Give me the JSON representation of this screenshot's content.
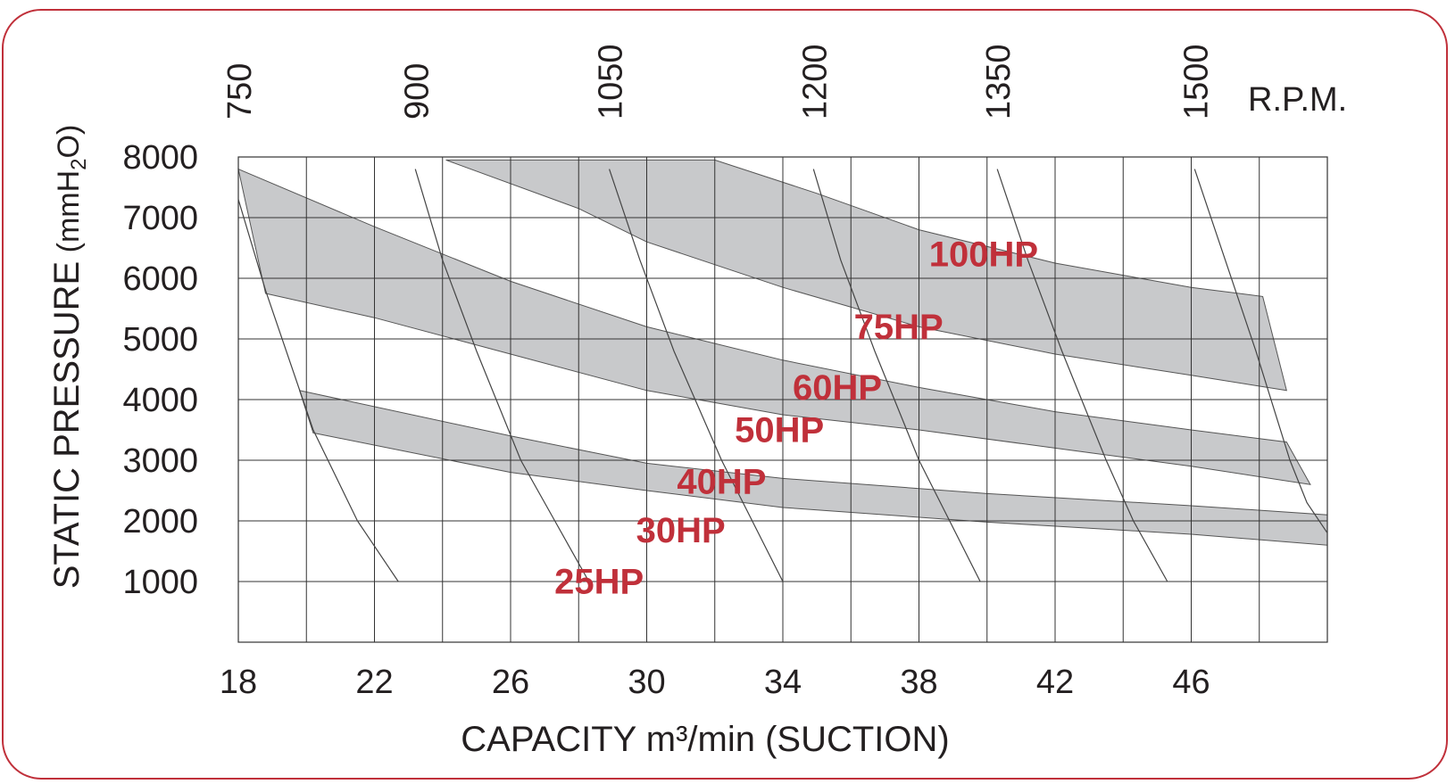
{
  "chart_data": {
    "type": "area",
    "title": "",
    "xlabel": "CAPACITY m³/min (SUCTION)",
    "ylabel": {
      "main": "STATIC PRESSURE",
      "unit_open": " (mmH",
      "unit_sub": "2",
      "unit_close": "O)"
    },
    "xlim": [
      18,
      50
    ],
    "ylim": [
      0,
      8000
    ],
    "x_ticks": [
      18,
      22,
      26,
      30,
      34,
      38,
      42,
      46
    ],
    "y_ticks": [
      1000,
      2000,
      3000,
      4000,
      5000,
      6000,
      7000,
      8000
    ],
    "grid": true,
    "colors": {
      "band": "#c8c9cb",
      "curve": "#444444",
      "grid": "#333333",
      "hp_label": "#c0303a",
      "frame": "#c0303a"
    },
    "rpm_axis": {
      "unit": "R.P.M.",
      "curves": [
        {
          "rpm": "750",
          "points": [
            [
              18,
              7300
            ],
            [
              18.8,
              5800
            ],
            [
              20.2,
              3500
            ],
            [
              21.5,
              2000
            ],
            [
              22.7,
              1000
            ]
          ]
        },
        {
          "rpm": "900",
          "points": [
            [
              23.2,
              7800
            ],
            [
              24.0,
              6300
            ],
            [
              25.0,
              4800
            ],
            [
              26.3,
              3000
            ],
            [
              27.3,
              2000
            ],
            [
              28.3,
              1000
            ]
          ]
        },
        {
          "rpm": "1050",
          "points": [
            [
              28.9,
              7800
            ],
            [
              29.8,
              6300
            ],
            [
              30.8,
              4800
            ],
            [
              32.2,
              3000
            ],
            [
              33.1,
              2000
            ],
            [
              34.0,
              1000
            ]
          ]
        },
        {
          "rpm": "1200",
          "points": [
            [
              34.9,
              7800
            ],
            [
              35.7,
              6300
            ],
            [
              36.7,
              4800
            ],
            [
              38.0,
              3000
            ],
            [
              38.9,
              2000
            ],
            [
              39.8,
              1000
            ]
          ]
        },
        {
          "rpm": "1350",
          "points": [
            [
              40.3,
              7800
            ],
            [
              41.2,
              6300
            ],
            [
              42.2,
              4800
            ],
            [
              43.5,
              3000
            ],
            [
              44.3,
              2000
            ],
            [
              45.3,
              1000
            ]
          ]
        },
        {
          "rpm": "1500",
          "points": [
            [
              46.1,
              7800
            ],
            [
              47.0,
              6300
            ],
            [
              47.9,
              4800
            ],
            [
              48.9,
              3000
            ],
            [
              49.4,
              2300
            ],
            [
              50.0,
              1800
            ]
          ]
        }
      ]
    },
    "bands": [
      {
        "lower": [
          [
            20.2,
            3450
          ],
          [
            26,
            2800
          ],
          [
            30,
            2500
          ],
          [
            34,
            2220
          ],
          [
            40,
            1980
          ],
          [
            46,
            1780
          ],
          [
            50,
            1600
          ]
        ],
        "upper": [
          [
            19.8,
            4150
          ],
          [
            26,
            3400
          ],
          [
            30,
            2950
          ],
          [
            34,
            2700
          ],
          [
            40,
            2450
          ],
          [
            46,
            2250
          ],
          [
            50,
            2100
          ]
        ]
      },
      {
        "lower": [
          [
            18.8,
            5750
          ],
          [
            22,
            5350
          ],
          [
            26,
            4750
          ],
          [
            30,
            4150
          ],
          [
            34,
            3750
          ],
          [
            38,
            3500
          ],
          [
            42,
            3200
          ],
          [
            46,
            2900
          ],
          [
            49.5,
            2600
          ]
        ],
        "upper": [
          [
            18,
            7800
          ],
          [
            22,
            6850
          ],
          [
            26,
            5950
          ],
          [
            30,
            5200
          ],
          [
            34,
            4650
          ],
          [
            38,
            4200
          ],
          [
            42,
            3800
          ],
          [
            46,
            3500
          ],
          [
            48.8,
            3300
          ]
        ]
      },
      {
        "lower": [
          [
            24.1,
            7950
          ],
          [
            28,
            7150
          ],
          [
            30,
            6600
          ],
          [
            34,
            5850
          ],
          [
            38,
            5200
          ],
          [
            42,
            4750
          ],
          [
            46,
            4400
          ],
          [
            48.8,
            4150
          ]
        ],
        "upper": [
          [
            24.1,
            7950
          ],
          [
            32,
            7950
          ],
          [
            35,
            7400
          ],
          [
            38,
            6800
          ],
          [
            42,
            6250
          ],
          [
            46,
            5850
          ],
          [
            48.1,
            5700
          ]
        ]
      }
    ],
    "hp_labels": [
      {
        "text": "25HP",
        "x": 28.6,
        "y": 800
      },
      {
        "text": "30HP",
        "x": 31.0,
        "y": 1650
      },
      {
        "text": "40HP",
        "x": 32.2,
        "y": 2450
      },
      {
        "text": "50HP",
        "x": 33.9,
        "y": 3300
      },
      {
        "text": "60HP",
        "x": 35.6,
        "y": 4000
      },
      {
        "text": "75HP",
        "x": 37.4,
        "y": 5000
      },
      {
        "text": "100HP",
        "x": 39.9,
        "y": 6200
      }
    ]
  }
}
